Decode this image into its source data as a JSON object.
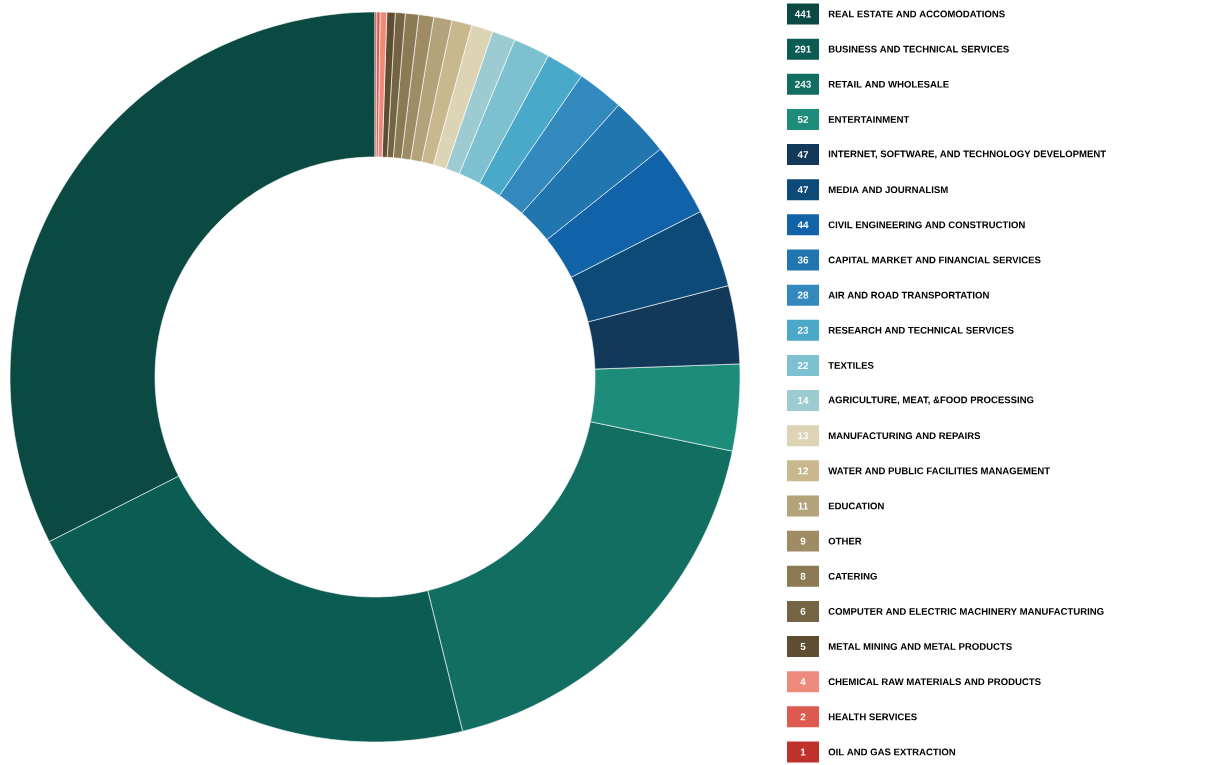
{
  "chart_data": {
    "type": "donut",
    "categories": [
      "REAL ESTATE AND ACCOMODATIONS",
      "BUSINESS AND TECHNICAL SERVICES",
      "RETAIL AND WHOLESALE",
      "ENTERTAINMENT",
      "INTERNET, SOFTWARE, AND TECHNOLOGY DEVELOPMENT",
      "MEDIA AND JOURNALISM",
      "CIVIL ENGINEERING AND CONSTRUCTION",
      "CAPITAL MARKET AND FINANCIAL SERVICES",
      "AIR AND ROAD TRANSPORTATION",
      "RESEARCH AND TECHNICAL SERVICES",
      "TEXTILES",
      "AGRICULTURE, MEAT, &FOOD PROCESSING",
      "MANUFACTURING AND REPAIRS",
      "WATER AND PUBLIC FACILITIES MANAGEMENT",
      "EDUCATION",
      "OTHER",
      "CATERING",
      "COMPUTER AND ELECTRIC MACHINERY MANUFACTURING",
      "METAL MINING AND METAL PRODUCTS",
      "CHEMICAL RAW MATERIALS AND PRODUCTS",
      "HEALTH SERVICES",
      "OIL AND GAS EXTRACTION"
    ],
    "values": [
      441,
      291,
      243,
      52,
      47,
      47,
      44,
      36,
      28,
      23,
      22,
      14,
      13,
      12,
      11,
      9,
      8,
      6,
      5,
      4,
      2,
      1
    ],
    "colors": [
      "#0a4a42",
      "#0b5c52",
      "#136e62",
      "#1d8c7a",
      "#12395a",
      "#0e4a78",
      "#1262a8",
      "#2176b0",
      "#3389bd",
      "#4aa8c8",
      "#7dc0cf",
      "#9ccbd2",
      "#ddd3b5",
      "#c9b88e",
      "#b3a27a",
      "#a08c64",
      "#8c7a55",
      "#756444",
      "#5e4d30",
      "#ee8a7c",
      "#dd5a50",
      "#c1312c"
    ],
    "data_labels": true,
    "legend": "right"
  }
}
